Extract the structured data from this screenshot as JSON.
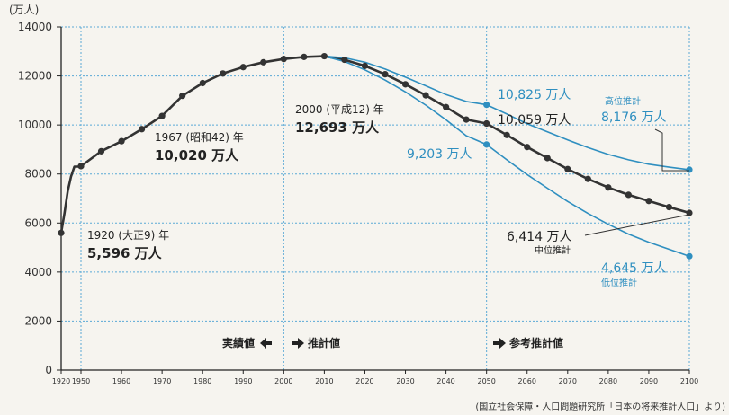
{
  "chart_data": {
    "type": "line",
    "unit_label": "(万人)",
    "ylim": [
      0,
      14000
    ],
    "yticks": [
      0,
      2000,
      4000,
      6000,
      8000,
      10000,
      12000,
      14000
    ],
    "xlim": [
      1920,
      2100
    ],
    "xticks": [
      1920,
      1950,
      1960,
      1970,
      1980,
      1990,
      2000,
      2010,
      2020,
      2030,
      2040,
      2050,
      2060,
      2070,
      2080,
      2090,
      2100
    ],
    "grid": true,
    "series": [
      {
        "name": "実績値",
        "color": "#333333",
        "x": [
          1920,
          1925,
          1930,
          1935,
          1940,
          1945,
          1950,
          1955,
          1960,
          1965,
          1970,
          1975,
          1980,
          1985,
          1990,
          1995,
          2000,
          2005,
          2010
        ],
        "values": [
          5596,
          6400,
          7300,
          7900,
          8300,
          8300,
          8320,
          8930,
          9340,
          9830,
          10370,
          11190,
          11710,
          12100,
          12360,
          12560,
          12693,
          12777,
          12806
        ]
      },
      {
        "name": "中位推計",
        "color": "#333333",
        "x": [
          2010,
          2015,
          2020,
          2025,
          2030,
          2035,
          2040,
          2045,
          2050,
          2055,
          2060,
          2065,
          2070,
          2075,
          2080,
          2085,
          2090,
          2095,
          2100
        ],
        "values": [
          12806,
          12660,
          12410,
          12070,
          11660,
          11210,
          10730,
          10220,
          10059,
          9590,
          9100,
          8650,
          8200,
          7800,
          7450,
          7150,
          6900,
          6650,
          6414
        ]
      },
      {
        "name": "高位推計",
        "color": "#2f8fc0",
        "x": [
          2010,
          2015,
          2020,
          2025,
          2030,
          2035,
          2040,
          2045,
          2050,
          2055,
          2060,
          2065,
          2070,
          2075,
          2080,
          2085,
          2090,
          2095,
          2100
        ],
        "values": [
          12806,
          12740,
          12560,
          12280,
          11950,
          11600,
          11240,
          10960,
          10825,
          10450,
          10050,
          9720,
          9390,
          9080,
          8800,
          8580,
          8400,
          8280,
          8176
        ]
      },
      {
        "name": "低位推計",
        "color": "#2f8fc0",
        "x": [
          2010,
          2015,
          2020,
          2025,
          2030,
          2035,
          2040,
          2045,
          2050,
          2055,
          2060,
          2065,
          2070,
          2075,
          2080,
          2085,
          2090,
          2095,
          2100
        ],
        "values": [
          12806,
          12590,
          12250,
          11830,
          11350,
          10810,
          10210,
          9560,
          9203,
          8580,
          7980,
          7420,
          6880,
          6390,
          5950,
          5550,
          5220,
          4930,
          4645
        ]
      }
    ],
    "markers": {
      "dark": [
        1920,
        1950,
        1955,
        1960,
        1965,
        1970,
        1975,
        1980,
        1985,
        1990,
        1995,
        2000,
        2005,
        2010,
        2015,
        2020,
        2025,
        2030,
        2035,
        2040,
        2045,
        2050,
        2055,
        2060,
        2065,
        2070,
        2075,
        2080,
        2085,
        2090,
        2095,
        2100
      ],
      "blue": [
        2050,
        2100
      ]
    },
    "annotations": [
      {
        "line1": "1920 (大正9) 年",
        "line2": "5,596 万人"
      },
      {
        "line1": "1967 (昭和42) 年",
        "line2": "10,020 万人"
      },
      {
        "line1": "2000 (平成12) 年",
        "line2": "12,693 万人"
      },
      {
        "line1": "10,825 万人"
      },
      {
        "line1": "10,059 万人"
      },
      {
        "line1": "9,203 万人"
      },
      {
        "line1": "高位推計",
        "line2": "8,176 万人"
      },
      {
        "line1": "6,414 万人",
        "line2": "中位推計"
      },
      {
        "line1": "4,645 万人",
        "line2": "低位推計"
      }
    ],
    "phase_labels": [
      {
        "text": "実績値",
        "arrow": "left"
      },
      {
        "text": "推計値",
        "arrow": "right"
      },
      {
        "text": "参考推計値",
        "arrow": "right"
      }
    ],
    "source": "(国立社会保障・人口問題研究所「日本の将来推計人口」より)"
  }
}
